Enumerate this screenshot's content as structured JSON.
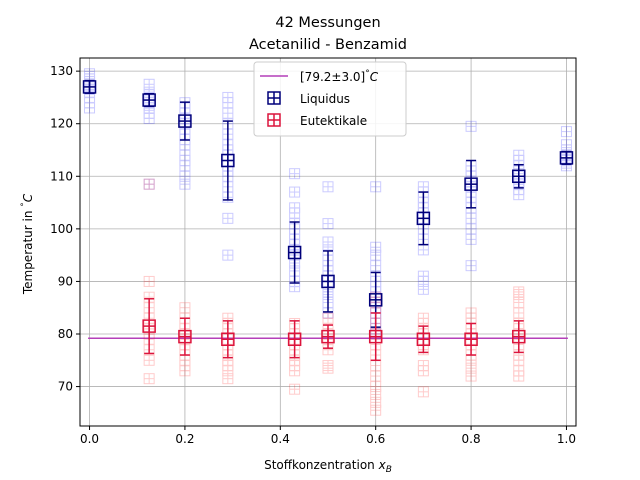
{
  "chart_data": {
    "type": "scatter",
    "title": "42 Messungen",
    "subtitle": "Acetanilid - Benzamid",
    "xlabel_main": "Stoffkonzentration ",
    "xlabel_var": "x",
    "xlabel_sub": "B",
    "ylabel_main": "Temperatur in ",
    "ylabel_unit": "C",
    "xlim": [
      -0.02,
      1.02
    ],
    "ylim": [
      62.5,
      132.5
    ],
    "x_ticks": [
      0.0,
      0.2,
      0.4,
      0.6,
      0.8,
      1.0
    ],
    "x_tick_labels": [
      "0.0",
      "0.2",
      "0.4",
      "0.6",
      "0.8",
      "1.0"
    ],
    "y_ticks": [
      70,
      80,
      90,
      100,
      110,
      120,
      130
    ],
    "y_tick_labels": [
      "70",
      "80",
      "90",
      "100",
      "110",
      "120",
      "130"
    ],
    "grid": true,
    "legend_position": "top-center",
    "eutectic_line": {
      "label": "[79.2±3.0]",
      "label_unit": "C",
      "value": 79.2,
      "uncertainty": 3.0,
      "color": "#b43fb9"
    },
    "series": [
      {
        "name": "Liquidus",
        "color": "#0000ff",
        "mean_color": "#00007a",
        "x": [
          0.0,
          0.125,
          0.2,
          0.29,
          0.43,
          0.5,
          0.6,
          0.7,
          0.8,
          0.9,
          1.0
        ],
        "y": [
          127.0,
          124.5,
          120.5,
          113.0,
          95.5,
          90.0,
          86.5,
          102.0,
          108.5,
          110.0,
          113.5
        ],
        "err": [
          1.2,
          1.2,
          3.6,
          7.5,
          5.8,
          5.8,
          5.2,
          5.0,
          4.5,
          2.2,
          1.2
        ],
        "scatter": [
          [
            126.0,
            127.0,
            128.0,
            129.0,
            129.5,
            126.5,
            127.5,
            125.0,
            124.0,
            123.0,
            128.5,
            127.2
          ],
          [
            124.0,
            125.0,
            123.0,
            126.0,
            127.5,
            122.0,
            121.0,
            125.5,
            124.5,
            123.5,
            108.5
          ],
          [
            108.5,
            110.0,
            112.0,
            114.0,
            116.0,
            118.0,
            120.0,
            121.0,
            122.0,
            123.0,
            124.0,
            119.0,
            117.0,
            113.0
          ],
          [
            95.0,
            102.0,
            106.0,
            108.0,
            110.0,
            112.0,
            114.0,
            116.0,
            118.0,
            120.0,
            122.0,
            124.0,
            125.0,
            111.0,
            115.0
          ],
          [
            89.0,
            90.0,
            92.0,
            93.5,
            95.0,
            96.0,
            97.0,
            98.0,
            100.0,
            101.0,
            103.0,
            104.0,
            107.0,
            110.5,
            99.0
          ],
          [
            84.0,
            86.0,
            87.5,
            89.0,
            90.0,
            91.0,
            92.0,
            93.0,
            94.0,
            96.0,
            97.5,
            101.0,
            108.0,
            88.0
          ],
          [
            80.0,
            81.0,
            82.0,
            83.0,
            84.0,
            85.0,
            86.0,
            87.0,
            88.0,
            89.0,
            90.0,
            91.0,
            93.0,
            95.0,
            96.5,
            108.0
          ],
          [
            88.5,
            90.0,
            91.0,
            96.0,
            98.0,
            100.0,
            102.0,
            104.0,
            105.0,
            106.0,
            107.0,
            108.0,
            103.0
          ],
          [
            93.0,
            98.0,
            100.0,
            102.0,
            104.0,
            105.0,
            106.0,
            107.0,
            108.0,
            109.0,
            110.0,
            111.0,
            112.0,
            119.5
          ],
          [
            106.5,
            107.5,
            108.5,
            109.0,
            110.0,
            111.0,
            112.0,
            113.0,
            114.0,
            110.5
          ],
          [
            112.0,
            112.5,
            113.0,
            113.5,
            114.0,
            114.5,
            115.0,
            116.0,
            118.5,
            113.2
          ]
        ]
      },
      {
        "name": "Eutektikale",
        "color": "#ff0000",
        "mean_color": "#dc143c",
        "x": [
          0.125,
          0.2,
          0.29,
          0.43,
          0.5,
          0.6,
          0.7,
          0.8,
          0.9
        ],
        "y": [
          81.5,
          79.5,
          79.0,
          79.0,
          79.5,
          79.5,
          79.0,
          79.0,
          79.5
        ],
        "err": [
          5.2,
          3.5,
          3.5,
          3.5,
          2.2,
          4.5,
          2.5,
          3.0,
          3.0
        ],
        "scatter": [
          [
            71.5,
            75.0,
            77.0,
            79.0,
            81.0,
            83.0,
            85.0,
            87.0,
            90.0,
            108.5,
            80.0
          ],
          [
            73.0,
            74.0,
            76.0,
            77.0,
            78.0,
            79.0,
            80.0,
            81.0,
            82.0,
            83.0,
            85.0,
            75.0
          ],
          [
            71.5,
            73.0,
            75.0,
            76.0,
            77.0,
            78.0,
            79.0,
            80.0,
            81.0,
            82.0,
            83.0,
            74.0
          ],
          [
            69.5,
            73.0,
            75.0,
            76.0,
            77.0,
            78.0,
            79.0,
            80.0,
            81.0,
            82.0,
            74.0
          ],
          [
            73.5,
            74.0,
            77.0,
            78.0,
            79.0,
            80.0,
            81.0,
            82.0,
            83.0
          ],
          [
            65.5,
            67.0,
            68.5,
            70.0,
            72.0,
            74.0,
            76.0,
            78.0,
            80.0,
            82.0,
            84.0,
            86.0,
            87.0
          ],
          [
            69.0,
            73.0,
            74.0,
            77.0,
            78.0,
            79.0,
            80.0,
            81.0,
            82.0,
            83.0
          ],
          [
            72.0,
            73.5,
            75.0,
            76.0,
            77.0,
            78.0,
            79.0,
            80.0,
            81.0,
            82.0,
            83.0,
            84.0
          ],
          [
            72.0,
            73.0,
            75.0,
            76.0,
            78.0,
            79.0,
            80.0,
            81.0,
            82.0,
            84.0,
            86.0,
            87.5,
            88.0
          ]
        ]
      }
    ]
  }
}
